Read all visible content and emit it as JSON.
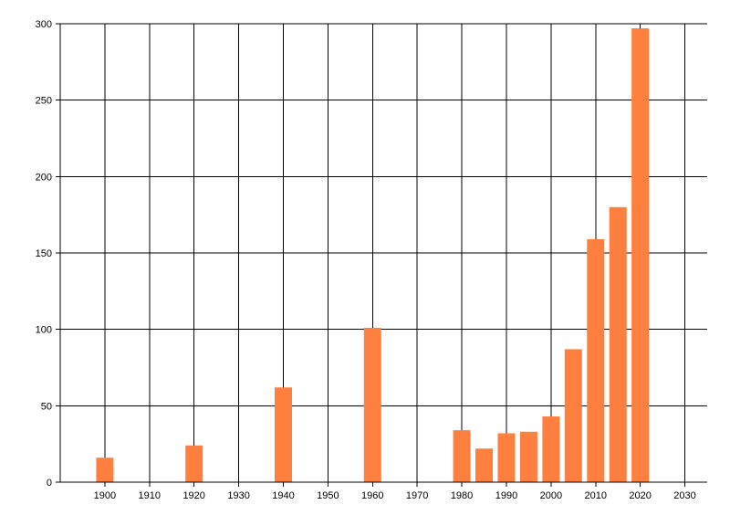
{
  "chart_data": {
    "type": "bar",
    "x": [
      1900,
      1920,
      1940,
      1960,
      1980,
      1985,
      1990,
      1995,
      2000,
      2005,
      2010,
      2015,
      2020
    ],
    "values": [
      16,
      24,
      62,
      101,
      34,
      22,
      32,
      33,
      43,
      87,
      159,
      180,
      297
    ],
    "xlim": [
      1890,
      2035
    ],
    "ylim": [
      0,
      300
    ],
    "xticks": [
      1900,
      1910,
      1920,
      1930,
      1940,
      1950,
      1960,
      1970,
      1980,
      1990,
      2000,
      2010,
      2020,
      2030
    ],
    "yticks": [
      0,
      50,
      100,
      150,
      200,
      250,
      300
    ],
    "xtick_labels": [
      "1900",
      "1910",
      "1920",
      "1930",
      "1940",
      "1950",
      "1960",
      "1970",
      "1980",
      "1990",
      "2000",
      "2010",
      "2020",
      "2030"
    ],
    "ytick_labels": [
      "0",
      "50",
      "100",
      "150",
      "200",
      "250",
      "300"
    ],
    "bar_color": "#ff7f3f",
    "grid": true,
    "gridline_color": "#000000",
    "legend": "none"
  }
}
